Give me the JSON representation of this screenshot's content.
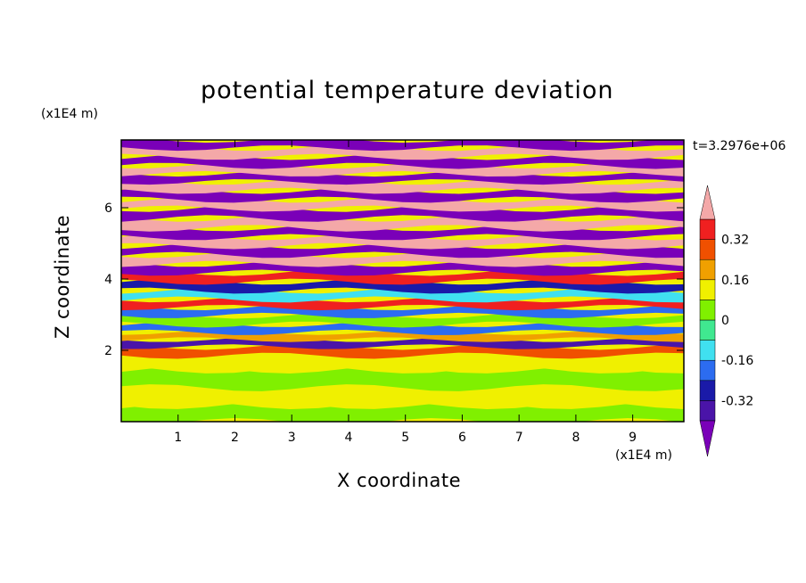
{
  "chart_data": {
    "type": "heatmap",
    "title": "potential temperature deviation",
    "xlabel": "X coordinate",
    "ylabel": "Z coordinate",
    "x_unit": "(x1E4 m)",
    "y_unit": "(x1E4 m)",
    "annotation": "t=3.2976e+06",
    "xlim": [
      0,
      9.9
    ],
    "ylim": [
      0,
      7.9
    ],
    "x_ticks": [
      1,
      2,
      3,
      4,
      5,
      6,
      7,
      8,
      9
    ],
    "y_ticks": [
      2,
      4,
      6
    ],
    "colorbar": {
      "labels": [
        "0.32",
        "0.16",
        "0",
        "-0.16",
        "-0.32"
      ],
      "label_values": [
        0.32,
        0.16,
        0,
        -0.16,
        -0.32
      ],
      "levels": [
        -0.4,
        -0.32,
        -0.24,
        -0.16,
        -0.08,
        0,
        0.08,
        0.16,
        0.24,
        0.32,
        0.4
      ],
      "colors": [
        "#7a00b8",
        "#4a14a8",
        "#1a1aa8",
        "#2c6cf0",
        "#40e0f0",
        "#40e890",
        "#80f000",
        "#f0f000",
        "#f0a000",
        "#f05000",
        "#f02020",
        "#f4a8a8"
      ],
      "extends": "both"
    },
    "bands": [
      {
        "z": 7.8,
        "value": -0.45
      },
      {
        "z": 7.55,
        "value": 0.45
      },
      {
        "z": 7.3,
        "value": -0.45
      },
      {
        "z": 7.05,
        "value": 0.45
      },
      {
        "z": 6.85,
        "value": -0.45
      },
      {
        "z": 6.6,
        "value": 0.45
      },
      {
        "z": 6.35,
        "value": -0.45
      },
      {
        "z": 6.1,
        "value": 0.45
      },
      {
        "z": 5.85,
        "value": -0.45
      },
      {
        "z": 5.55,
        "value": 0.45
      },
      {
        "z": 5.3,
        "value": -0.45
      },
      {
        "z": 5.05,
        "value": 0.45
      },
      {
        "z": 4.8,
        "value": -0.45
      },
      {
        "z": 4.55,
        "value": 0.45
      },
      {
        "z": 4.3,
        "value": -0.45
      },
      {
        "z": 4.05,
        "value": 0.35
      },
      {
        "z": 3.8,
        "value": -0.3
      },
      {
        "z": 3.55,
        "value": -0.1
      },
      {
        "z": 3.3,
        "value": 0.36
      },
      {
        "z": 3.1,
        "value": -0.2
      },
      {
        "z": 2.85,
        "value": 0.02
      },
      {
        "z": 2.6,
        "value": -0.2
      },
      {
        "z": 2.4,
        "value": 0.2
      },
      {
        "z": 2.2,
        "value": -0.36
      },
      {
        "z": 2.0,
        "value": 0.3
      },
      {
        "z": 1.7,
        "value": 0.1
      },
      {
        "z": 1.2,
        "value": 0.06
      },
      {
        "z": 0.7,
        "value": 0.1
      },
      {
        "z": 0.2,
        "value": 0.04
      }
    ]
  }
}
